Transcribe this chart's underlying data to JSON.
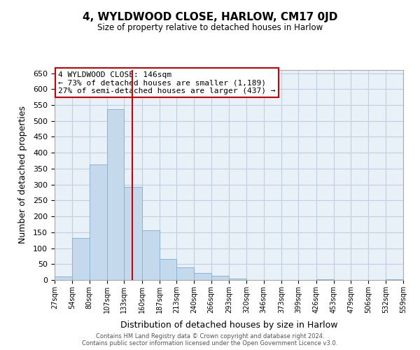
{
  "title": "4, WYLDWOOD CLOSE, HARLOW, CM17 0JD",
  "subtitle": "Size of property relative to detached houses in Harlow",
  "xlabel": "Distribution of detached houses by size in Harlow",
  "ylabel": "Number of detached properties",
  "bar_color": "#c5d9ed",
  "bar_edge_color": "#8ab4d4",
  "background_color": "#ffffff",
  "axes_facecolor": "#e8f0f8",
  "grid_color": "#c0d0e0",
  "property_line_x": 146,
  "property_line_color": "#cc0000",
  "bin_edges": [
    27,
    54,
    80,
    107,
    133,
    160,
    187,
    213,
    240,
    266,
    293,
    320,
    346,
    373,
    399,
    426,
    453,
    479,
    506,
    532,
    559
  ],
  "bar_heights": [
    10,
    133,
    362,
    536,
    293,
    157,
    65,
    40,
    22,
    14,
    5,
    0,
    0,
    0,
    0,
    2,
    0,
    0,
    0,
    2
  ],
  "ylim": [
    0,
    660
  ],
  "yticks": [
    0,
    50,
    100,
    150,
    200,
    250,
    300,
    350,
    400,
    450,
    500,
    550,
    600,
    650
  ],
  "annotation_title": "4 WYLDWOOD CLOSE: 146sqm",
  "annotation_line1": "← 73% of detached houses are smaller (1,189)",
  "annotation_line2": "27% of semi-detached houses are larger (437) →",
  "footer1": "Contains HM Land Registry data © Crown copyright and database right 2024.",
  "footer2": "Contains public sector information licensed under the Open Government Licence v3.0."
}
